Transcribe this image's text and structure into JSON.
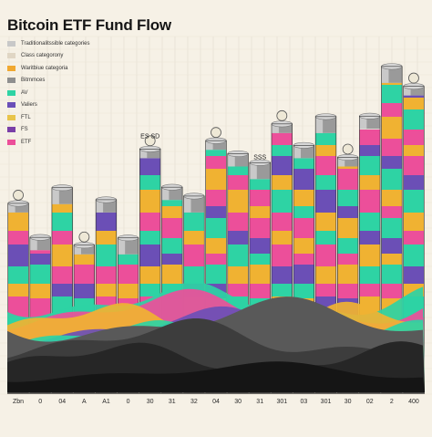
{
  "page": {
    "title": "Bitcoin ETF Fund Flow"
  },
  "legend": [
    {
      "label": "Traditionalitssible categories",
      "color": "#c8c8c8"
    },
    {
      "label": "Class categorony",
      "color": "#e0d6c4"
    },
    {
      "label": "Waritbiue categoria",
      "color": "#f0a830"
    },
    {
      "label": "Bitmmces",
      "color": "#8f8f8f"
    },
    {
      "label": "AV",
      "color": "#2ed3a4"
    },
    {
      "label": "Valiers",
      "color": "#6a4fb8"
    },
    {
      "label": "FTL",
      "color": "#e8c44a"
    },
    {
      "label": "FS",
      "color": "#7a3fa8"
    },
    {
      "label": "ETF",
      "color": "#ec4f9a"
    }
  ],
  "palette": {
    "background": "#f6f1e6",
    "teal": "#2ed3a4",
    "pink": "#ec4f9a",
    "yellow": "#f0b232",
    "purple": "#6b4fb6",
    "dark": "#222222"
  },
  "x_labels": [
    "Zbn",
    "0",
    "04",
    "A",
    "A1",
    "0",
    "30",
    "31",
    "32",
    "04",
    "30",
    "31",
    "301",
    "03",
    "301",
    "30",
    "02",
    "2",
    "400"
  ],
  "bar_labels": [
    "ES SD",
    "SSS"
  ],
  "chart_data": {
    "type": "bar",
    "title": "Bitcoin ETF Fund Flow",
    "xlabel": "",
    "ylabel": "",
    "categories": [
      "Zbn",
      "0",
      "04",
      "A",
      "A1",
      "0",
      "30",
      "31",
      "32",
      "04",
      "30",
      "31",
      "301",
      "03",
      "301",
      "30",
      "02",
      "2",
      "400"
    ],
    "series": [
      {
        "values": [
          215,
          170,
          225,
          165,
          215,
          165,
          280,
          230,
          215,
          290,
          270,
          255,
          310,
          280,
          310,
          270,
          315,
          370,
          355
        ]
      }
    ],
    "ylim": [
      0,
      420
    ],
    "grid": true,
    "legend_position": "top-left"
  }
}
